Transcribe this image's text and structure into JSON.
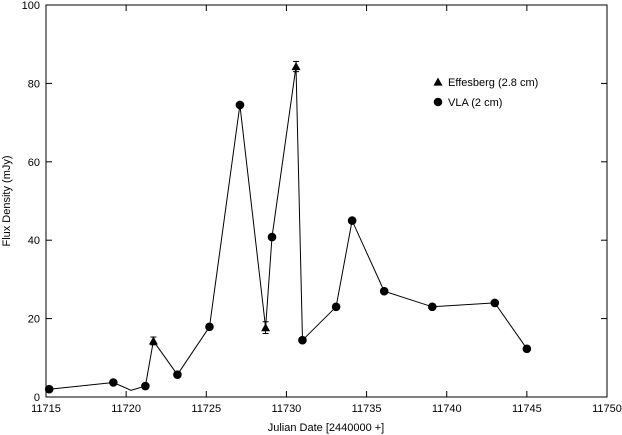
{
  "chart_data": {
    "type": "line",
    "title": "",
    "xlabel": "Julian Date [2440000 +]",
    "ylabel": "Flux Density (mJy)",
    "xlim": [
      11715,
      11750
    ],
    "ylim": [
      0,
      100
    ],
    "xticks": [
      11715,
      11720,
      11725,
      11730,
      11735,
      11740,
      11745,
      11750
    ],
    "yticks": [
      0,
      20,
      40,
      60,
      80,
      100
    ],
    "grid": false,
    "legend_position": "top-right",
    "connected_line": {
      "x": [
        11715.2,
        11719.2,
        11720.3,
        11721.2,
        11721.7,
        11723.2,
        11725.2,
        11727.1,
        11728.7,
        11729.1,
        11730.6,
        11731.0,
        11733.1,
        11734.1,
        11736.1,
        11739.1,
        11743.0,
        11745.0
      ],
      "y": [
        2.0,
        3.7,
        1.7,
        2.8,
        14.3,
        5.7,
        17.9,
        74.5,
        17.7,
        40.8,
        84.3,
        14.5,
        23.0,
        45.0,
        27.0,
        23.0,
        24.0,
        12.3
      ]
    },
    "series": [
      {
        "name": "Effesberg (2.8 cm)",
        "marker": "triangle",
        "x": [
          11721.7,
          11728.7,
          11730.6
        ],
        "y": [
          14.3,
          17.7,
          84.3
        ],
        "yerr": [
          1.0,
          1.5,
          1.3
        ]
      },
      {
        "name": "VLA (2 cm)",
        "marker": "circle",
        "x": [
          11715.2,
          11719.2,
          11721.2,
          11723.2,
          11725.2,
          11727.1,
          11729.1,
          11731.0,
          11733.1,
          11734.1,
          11736.1,
          11739.1,
          11743.0,
          11745.0
        ],
        "y": [
          2.0,
          3.7,
          2.8,
          5.7,
          17.9,
          74.5,
          40.8,
          14.5,
          23.0,
          45.0,
          27.0,
          23.0,
          24.0,
          12.3
        ]
      }
    ]
  }
}
